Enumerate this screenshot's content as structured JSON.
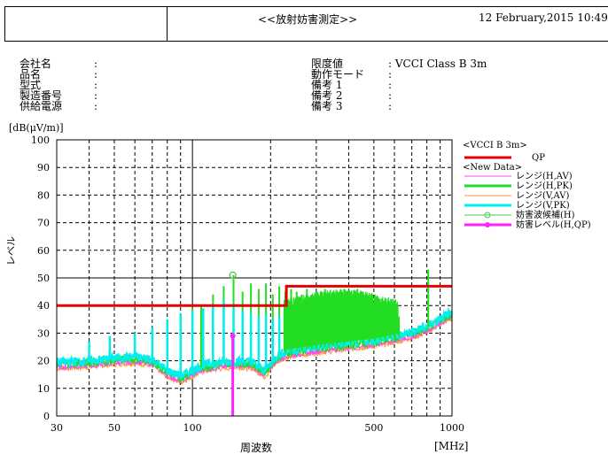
{
  "header": {
    "title": "<<放射妨害測定>>",
    "datetime": "12 February,2015 10:49"
  },
  "info_left": [
    {
      "label": "会社名",
      "value": ":"
    },
    {
      "label": "品名",
      "value": ":"
    },
    {
      "label": "型式",
      "value": ":"
    },
    {
      "label": "製造番号",
      "value": ":"
    },
    {
      "label": "供給電源",
      "value": ":"
    }
  ],
  "info_right": [
    {
      "label": "限度値",
      "value": ": VCCI Class B 3m"
    },
    {
      "label": "動作モード",
      "value": ":"
    },
    {
      "label": "備考 1",
      "value": ":"
    },
    {
      "label": "備考 2",
      "value": ":"
    },
    {
      "label": "備考 3",
      "value": ":"
    }
  ],
  "colors": {
    "limit": "#e60000",
    "h_av": "#ff44ff",
    "h_pk": "#22dd22",
    "v_av": "#ff9933",
    "v_pk": "#00eeee",
    "candidate": "#44cc44",
    "qp": "#ff22ff"
  },
  "chart_data": {
    "type": "line",
    "x_scale": "log",
    "xlim": [
      30,
      1000
    ],
    "ylim": [
      0,
      100
    ],
    "y_unit": "[dB(μV/m)]",
    "ylabel": "レベル",
    "xlabel": "周波数",
    "x_unit": "[MHz]",
    "x_ticks": [
      30,
      50,
      100,
      500,
      1000
    ],
    "y_ticks": [
      0,
      10,
      20,
      30,
      40,
      50,
      60,
      70,
      80,
      90,
      100
    ],
    "grid": true,
    "legend": {
      "group1": "<VCCI B 3m>",
      "group2": "<New Data>",
      "entries": [
        {
          "key": "limit",
          "label": "QP"
        },
        {
          "key": "h_av",
          "label": "レンジ(H,AV)"
        },
        {
          "key": "h_pk",
          "label": "レンジ(H,PK)"
        },
        {
          "key": "v_av",
          "label": "レンジ(V,AV)"
        },
        {
          "key": "v_pk",
          "label": "レンジ(V,PK)"
        },
        {
          "key": "candidate",
          "label": "妨害波候補(H)"
        },
        {
          "key": "qp",
          "label": "妨害レベル(H,QP)"
        }
      ]
    },
    "limit_line": {
      "x": [
        30,
        230,
        230,
        1000
      ],
      "y": [
        40,
        40,
        47,
        47
      ]
    },
    "baseline": {
      "x": [
        30,
        40,
        50,
        60,
        70,
        80,
        90,
        100,
        110,
        130,
        150,
        170,
        190,
        210,
        230,
        270,
        320,
        400,
        500,
        600,
        700,
        800,
        900,
        1000
      ],
      "y": [
        18,
        18.5,
        19.5,
        20,
        19,
        15,
        13,
        15,
        17,
        18,
        18.5,
        18,
        15,
        20,
        22,
        23,
        24,
        25,
        26,
        27.5,
        29,
        31,
        34,
        36
      ]
    },
    "h_pk_spikes": {
      "x": [
        100,
        108,
        120,
        132,
        144,
        156,
        168,
        180,
        192,
        204,
        216,
        228,
        240,
        252,
        264,
        276,
        288,
        300,
        312,
        324,
        336,
        348,
        360,
        384,
        408,
        432,
        456,
        480,
        504,
        528,
        552,
        576,
        600,
        624,
        810
      ],
      "y": [
        39,
        40,
        44,
        47,
        51,
        45,
        48,
        46,
        48,
        44,
        47,
        45,
        46,
        45,
        44,
        46,
        43,
        45,
        44,
        46,
        44,
        45,
        44,
        46,
        45,
        46,
        44,
        43,
        42,
        41,
        40,
        39,
        37,
        36,
        53
      ]
    },
    "v_pk_spikes": {
      "x": [
        40,
        48,
        60,
        70,
        80,
        90,
        100,
        110,
        120,
        132,
        144,
        156,
        168,
        180,
        192,
        204,
        216
      ],
      "y": [
        27,
        29,
        30,
        32,
        35,
        37,
        38,
        39,
        40,
        42,
        40,
        38,
        37,
        36,
        37,
        35,
        36
      ]
    },
    "candidate_marker": {
      "x": 143,
      "y": 51
    },
    "qp_marker": {
      "x": 143,
      "y": 29
    }
  }
}
